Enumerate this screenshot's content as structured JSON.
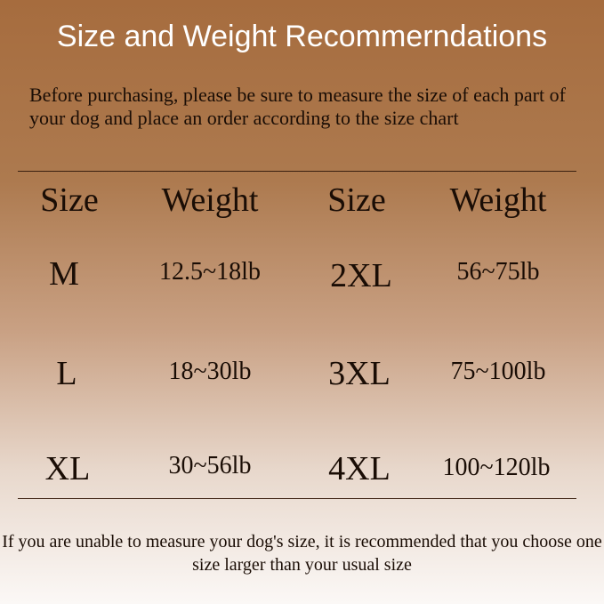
{
  "title": "Size and Weight Recommerndations",
  "intro": "Before purchasing, please be sure to measure the size of each part of your dog and place an order according to the size chart",
  "headers": {
    "size": "Size",
    "weight": "Weight"
  },
  "rows_left": [
    {
      "size": "M",
      "weight": "12.5~18lb"
    },
    {
      "size": "L",
      "weight": "18~30lb"
    },
    {
      "size": "XL",
      "weight": "30~56lb"
    }
  ],
  "rows_right": [
    {
      "size": "2XL",
      "weight": "56~75lb"
    },
    {
      "size": "3XL",
      "weight": "75~100lb"
    },
    {
      "size": "4XL",
      "weight": "100~120lb"
    }
  ],
  "footer": "If you are unable to measure your dog's size, it is recommended that you choose one size larger than your usual size"
}
